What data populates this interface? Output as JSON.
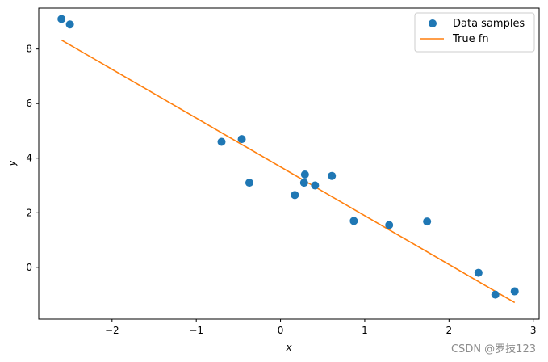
{
  "chart_data": {
    "type": "scatter",
    "xlabel": "x",
    "ylabel": "y",
    "xlim": [
      -2.87,
      3.07
    ],
    "ylim": [
      -1.9,
      9.5
    ],
    "xticks": [
      -2,
      -1,
      0,
      1,
      2,
      3
    ],
    "yticks": [
      0,
      2,
      4,
      6,
      8
    ],
    "grid": false,
    "legend_position": "top-right",
    "series": [
      {
        "name": "Data samples",
        "kind": "scatter",
        "color": "#1f77b4",
        "x": [
          -2.6,
          -2.5,
          -0.7,
          -0.46,
          -0.37,
          0.17,
          0.28,
          0.29,
          0.41,
          0.61,
          0.87,
          1.29,
          1.74,
          2.35,
          2.55,
          2.78
        ],
        "y": [
          9.1,
          8.9,
          4.6,
          4.7,
          3.1,
          2.65,
          3.1,
          3.4,
          3.0,
          3.35,
          1.7,
          1.55,
          1.68,
          -0.2,
          -1.0,
          -0.88
        ]
      },
      {
        "name": "True fn",
        "kind": "line",
        "color": "#ff7f0e",
        "x": [
          -2.6,
          2.78
        ],
        "y": [
          8.33,
          -1.29
        ]
      }
    ]
  },
  "watermark": "CSDN @罗技123"
}
